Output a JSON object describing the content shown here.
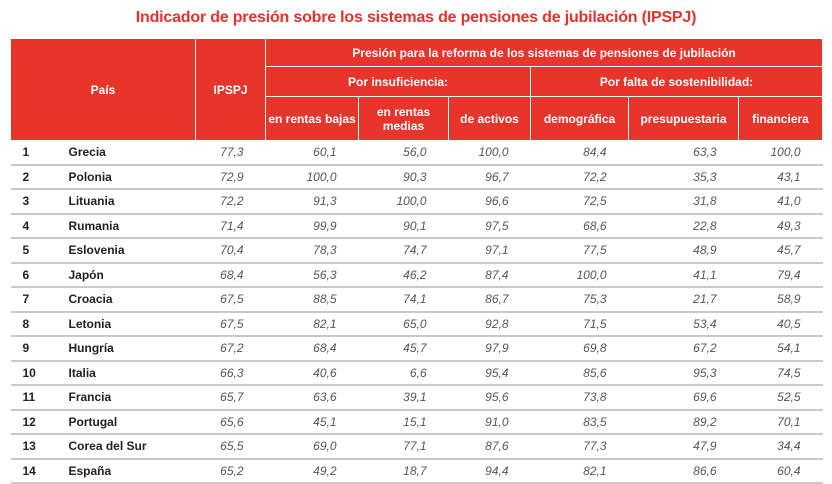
{
  "title": "Indicador de presión sobre los sistemas de pensiones de jubilación (IPSPJ)",
  "header": {
    "country": "País",
    "index": "IPSPJ",
    "group": "Presión para la reforma de los sistemas de pensiones de jubilación",
    "sub1": "Por insuficiencia:",
    "sub2": "Por falta de sostenibilidad:",
    "cols": [
      "en rentas bajas",
      "en rentas medias",
      "de activos",
      "demográfica",
      "presupuestaria",
      "financiera"
    ]
  },
  "rows": [
    [
      "1",
      "Grecia",
      "77,3",
      "60,1",
      "56,0",
      "100,0",
      "84,4",
      "63,3",
      "100,0"
    ],
    [
      "2",
      "Polonia",
      "72,9",
      "100,0",
      "90,3",
      "96,7",
      "72,2",
      "35,3",
      "43,1"
    ],
    [
      "3",
      "Lituania",
      "72,2",
      "91,3",
      "100,0",
      "96,6",
      "72,5",
      "31,8",
      "41,0"
    ],
    [
      "4",
      "Rumania",
      "71,4",
      "99,9",
      "90,1",
      "97,5",
      "68,6",
      "22,8",
      "49,3"
    ],
    [
      "5",
      "Eslovenia",
      "70,4",
      "78,3",
      "74,7",
      "97,1",
      "77,5",
      "48,9",
      "45,7"
    ],
    [
      "6",
      "Japón",
      "68,4",
      "56,3",
      "46,2",
      "87,4",
      "100,0",
      "41,1",
      "79,4"
    ],
    [
      "7",
      "Croacia",
      "67,5",
      "88,5",
      "74,1",
      "86,7",
      "75,3",
      "21,7",
      "58,9"
    ],
    [
      "8",
      "Letonia",
      "67,5",
      "82,1",
      "65,0",
      "92,8",
      "71,5",
      "53,4",
      "40,5"
    ],
    [
      "9",
      "Hungría",
      "67,2",
      "68,4",
      "45,7",
      "97,9",
      "69,8",
      "67,2",
      "54,1"
    ],
    [
      "10",
      "Italia",
      "66,3",
      "40,6",
      "6,6",
      "95,4",
      "85,6",
      "95,3",
      "74,5"
    ],
    [
      "11",
      "Francia",
      "65,7",
      "63,6",
      "39,1",
      "95,6",
      "73,8",
      "69,6",
      "52,5"
    ],
    [
      "12",
      "Portugal",
      "65,6",
      "45,1",
      "15,1",
      "91,0",
      "83,5",
      "89,2",
      "70,1"
    ],
    [
      "13",
      "Corea del Sur",
      "65,5",
      "69,0",
      "77,1",
      "87,6",
      "77,3",
      "47,9",
      "34,4"
    ],
    [
      "14",
      "España",
      "65,2",
      "49,2",
      "18,7",
      "94,4",
      "82,1",
      "86,6",
      "60,4"
    ]
  ]
}
